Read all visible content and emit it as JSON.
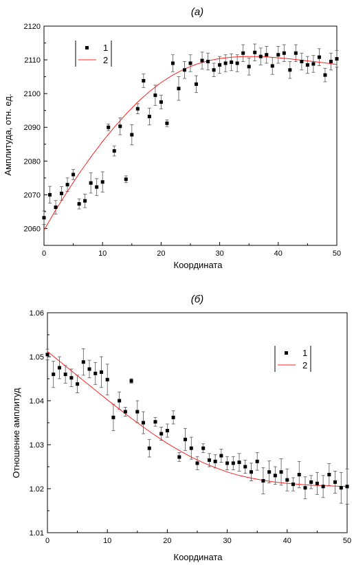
{
  "chart_data": [
    {
      "type": "scatter",
      "title": "(а)",
      "xlabel": "Координата",
      "ylabel": "Амплитуда, отн. ед.",
      "xlim": [
        0,
        50
      ],
      "ylim": [
        2055,
        2120
      ],
      "xticks": [
        "0",
        "10",
        "20",
        "30",
        "40",
        "50"
      ],
      "yticks": [
        "2060",
        "2070",
        "2080",
        "2090",
        "2100",
        "2110",
        "2120"
      ],
      "legend_position": "top-left",
      "colors": {
        "points": "#000000",
        "fit": "#ff2020"
      },
      "series": [
        {
          "name": "1",
          "kind": "points",
          "x": [
            0,
            1,
            2,
            3,
            4,
            5,
            6,
            7,
            8,
            9,
            10,
            11,
            12,
            13,
            14,
            15,
            16,
            17,
            18,
            19,
            20,
            21,
            22,
            23,
            24,
            25,
            26,
            27,
            28,
            29,
            30,
            31,
            32,
            33,
            34,
            35,
            36,
            37,
            38,
            39,
            40,
            41,
            42,
            43,
            44,
            45,
            46,
            47,
            48,
            49,
            50
          ],
          "y": [
            2063.2,
            2070,
            2066.3,
            2070.4,
            2073,
            2076,
            2067.3,
            2068.2,
            2073.5,
            2072.3,
            2073.8,
            2090,
            2083,
            2090.3,
            2074.6,
            2087.8,
            2095.5,
            2103.8,
            2093.2,
            2099.5,
            2097.5,
            2091.2,
            2109,
            2101.5,
            2107,
            2109,
            2102.8,
            2109.8,
            2109.5,
            2107,
            2108.5,
            2109,
            2109.3,
            2109,
            2112,
            2108,
            2112.2,
            2111,
            2111.5,
            2108.2,
            2111.5,
            2112,
            2107,
            2112,
            2109.5,
            2108.5,
            2108.8,
            2110.8,
            2105.5,
            2109.5,
            2110.3
          ],
          "err": [
            2,
            2.5,
            2,
            2,
            2,
            1.5,
            1.5,
            2,
            3,
            2.5,
            3,
            1,
            1.5,
            2.5,
            1,
            3,
            1.5,
            2,
            2.5,
            3,
            2,
            1,
            2.5,
            3.5,
            2.5,
            2.5,
            2.5,
            2.5,
            2.5,
            2,
            2.5,
            2.5,
            2.5,
            2.5,
            2.5,
            2.5,
            2.5,
            2.5,
            2.5,
            2.5,
            2.5,
            2.5,
            2.5,
            2.5,
            2.5,
            2.5,
            2.5,
            2.5,
            2,
            2.5,
            2.5
          ]
        },
        {
          "name": "2",
          "kind": "line",
          "x": [
            0,
            2,
            4,
            6,
            8,
            10,
            12,
            14,
            16,
            18,
            20,
            22,
            24,
            26,
            28,
            30,
            32,
            34,
            36,
            38,
            40,
            42,
            44,
            46,
            48,
            50
          ],
          "y": [
            2059.5,
            2065.5,
            2071,
            2076.3,
            2081.2,
            2085.8,
            2090,
            2093.9,
            2097.5,
            2100.6,
            2103.3,
            2105.5,
            2107.3,
            2108.7,
            2109.7,
            2110.4,
            2110.8,
            2111,
            2111,
            2110.9,
            2110.6,
            2110.3,
            2109.9,
            2109.5,
            2109.1,
            2108.6
          ]
        }
      ],
      "legend": [
        "1",
        "2"
      ]
    },
    {
      "type": "scatter",
      "title": "(б)",
      "xlabel": "Координата",
      "ylabel": "Отношение амплитуд",
      "xlim": [
        0,
        50
      ],
      "ylim": [
        1.01,
        1.06
      ],
      "xticks": [
        "0",
        "10",
        "20",
        "30",
        "40",
        "50"
      ],
      "yticks": [
        "1.01",
        "1.02",
        "1.03",
        "1.04",
        "1.05",
        "1.06"
      ],
      "legend_position": "top-right",
      "colors": {
        "points": "#000000",
        "fit": "#ff2020"
      },
      "series": [
        {
          "name": "1",
          "kind": "points",
          "x": [
            0,
            1,
            2,
            3,
            4,
            5,
            6,
            7,
            8,
            9,
            10,
            11,
            12,
            13,
            14,
            15,
            16,
            17,
            18,
            19,
            20,
            21,
            22,
            23,
            24,
            25,
            26,
            27,
            28,
            29,
            30,
            31,
            32,
            33,
            34,
            35,
            36,
            37,
            38,
            39,
            40,
            41,
            42,
            43,
            44,
            45,
            46,
            47,
            48,
            49,
            50
          ],
          "y": [
            1.0505,
            1.046,
            1.0475,
            1.046,
            1.0452,
            1.0438,
            1.0488,
            1.0472,
            1.0462,
            1.0465,
            1.0448,
            1.0362,
            1.04,
            1.0375,
            1.0445,
            1.0375,
            1.035,
            1.0292,
            1.0352,
            1.0325,
            1.0332,
            1.0362,
            1.0272,
            1.0312,
            1.0292,
            1.0258,
            1.0292,
            1.0265,
            1.0262,
            1.0275,
            1.0258,
            1.0258,
            1.026,
            1.025,
            1.0238,
            1.0262,
            1.0218,
            1.0238,
            1.023,
            1.0238,
            1.022,
            1.021,
            1.0232,
            1.0202,
            1.0215,
            1.0212,
            1.0205,
            1.0232,
            1.0215,
            1.0202,
            1.0205
          ],
          "err": [
            0.0012,
            0.003,
            0.0025,
            0.002,
            0.002,
            0.002,
            0.003,
            0.002,
            0.0025,
            0.0035,
            0.0035,
            0.003,
            0.002,
            0.001,
            0.0005,
            0.0025,
            0.0025,
            0.002,
            0.001,
            0.0015,
            0.0015,
            0.0015,
            0.001,
            0.0025,
            0.0025,
            0.0015,
            0.001,
            0.0015,
            0.0015,
            0.0015,
            0.0015,
            0.0015,
            0.002,
            0.0015,
            0.002,
            0.002,
            0.003,
            0.0025,
            0.002,
            0.003,
            0.0025,
            0.0015,
            0.003,
            0.0025,
            0.0015,
            0.0025,
            0.0025,
            0.0025,
            0.0025,
            0.0035,
            0.004
          ]
        },
        {
          "name": "2",
          "kind": "line",
          "x": [
            0,
            2,
            4,
            6,
            8,
            10,
            12,
            14,
            16,
            18,
            20,
            22,
            24,
            26,
            28,
            30,
            32,
            34,
            36,
            38,
            40,
            42,
            44,
            46,
            48,
            50
          ],
          "y": [
            1.0512,
            1.049,
            1.0468,
            1.0446,
            1.0424,
            1.0402,
            1.0381,
            1.036,
            1.034,
            1.0321,
            1.0303,
            1.0287,
            1.0272,
            1.0259,
            1.0248,
            1.0238,
            1.023,
            1.0224,
            1.0219,
            1.0215,
            1.0212,
            1.021,
            1.0208,
            1.0207,
            1.0206,
            1.0205
          ]
        }
      ],
      "legend": [
        "1",
        "2"
      ]
    }
  ]
}
